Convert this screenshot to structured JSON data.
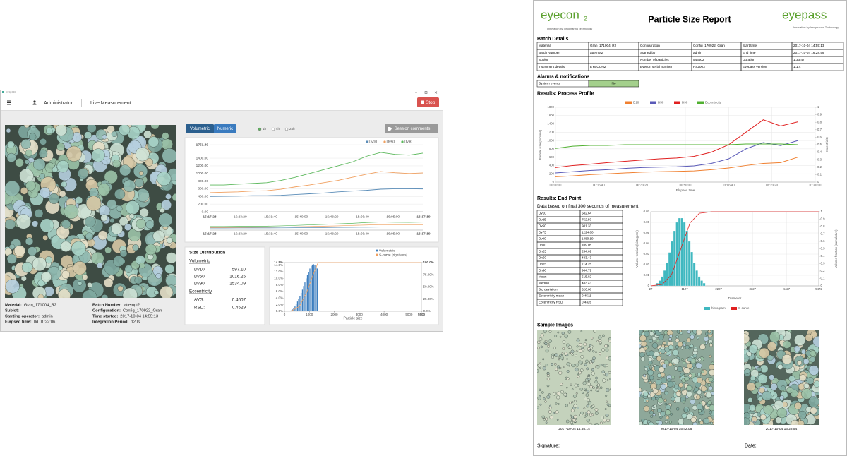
{
  "app": {
    "window_title": "eyepass",
    "user": "Administrator",
    "mode": "Live Measurement",
    "stop": "Stop",
    "tabs": [
      "Volumetric",
      "Numeric"
    ],
    "ranges": [
      "1h",
      "4h",
      "24h"
    ],
    "session_comments": "Session comments",
    "info": [
      {
        "label": "Material:",
        "value": "Gran_171004_R2"
      },
      {
        "label": "Batch Number:",
        "value": "attempt2"
      },
      {
        "label": "Sublot:"
      },
      {
        "label": "Configuration:",
        "value": "Config_170922_Gran"
      },
      {
        "label": "Starting operator:",
        "value": "admin"
      },
      {
        "label": "Time started:",
        "value": "2017-10-04 14:55:13"
      },
      {
        "label": "Elapsed time:",
        "value": "0d 01:22:06"
      },
      {
        "label": "Integration Period:",
        "value": "120s"
      }
    ],
    "trend": {
      "type": "line",
      "ylim": [
        0,
        1751.89
      ],
      "yticks": [
        {
          "value": 0,
          "label": "0.00"
        },
        {
          "value": 200,
          "label": "200.00"
        },
        {
          "value": 400,
          "label": "400.00"
        },
        {
          "value": 600,
          "label": "600.00"
        },
        {
          "value": 800,
          "label": "800.00"
        },
        {
          "value": 1000,
          "label": "1000.00"
        },
        {
          "value": 1200,
          "label": "1200.00"
        },
        {
          "value": 1400,
          "label": "1400.00"
        },
        1751.89
      ],
      "xticks": [
        "15:17:23",
        "15:23:20",
        "15:31:40",
        "15:40:00",
        "15:48:20",
        "15:56:40",
        "16:05:00",
        "16:17:19"
      ],
      "grid": true,
      "series": [
        {
          "name": "Dv10",
          "color": "#5b8db8",
          "values": [
            400,
            405,
            410,
            420,
            420,
            430,
            450,
            470,
            490,
            520,
            540,
            560,
            590,
            600,
            600,
            597
          ]
        },
        {
          "name": "Dv50",
          "color": "#f0a060",
          "values": [
            500,
            510,
            520,
            540,
            550,
            590,
            650,
            700,
            760,
            820,
            900,
            980,
            1050,
            1020,
            1000,
            1016
          ]
        },
        {
          "name": "Dv90",
          "color": "#5cb85c",
          "values": [
            700,
            700,
            720,
            740,
            760,
            820,
            900,
            1000,
            1100,
            1200,
            1300,
            1450,
            1550,
            1500,
            1480,
            1534
          ]
        }
      ]
    },
    "size_distribution": {
      "title": "Size Distribution",
      "volumetric": "Volumetric",
      "stats": [
        {
          "label": "Dv10:",
          "value": "597.10"
        },
        {
          "label": "Dv50:",
          "value": "1016.25"
        },
        {
          "label": "Dv90:",
          "value": "1534.09"
        }
      ],
      "eccentricity": "Eccentricity",
      "ecc_stats": [
        {
          "label": "AVG:",
          "value": "0.4607"
        },
        {
          "label": "RSD:",
          "value": "0.4529"
        }
      ]
    },
    "histogram": {
      "type": "histogram",
      "x_label": "Particle size",
      "xlim": [
        0,
        5500
      ],
      "xticks": [
        0,
        1000,
        2000,
        3000,
        4000,
        5000,
        5500
      ],
      "ylim": [
        0,
        14.8
      ],
      "yticks": [
        {
          "value": 0,
          "label": "0.0%"
        },
        {
          "value": 2,
          "label": "2.0%"
        },
        {
          "value": 4,
          "label": "4.0%"
        },
        {
          "value": 6,
          "label": "6.0%"
        },
        {
          "value": 8,
          "label": "8.0%"
        },
        {
          "value": 10,
          "label": "10.0%"
        },
        {
          "value": 12,
          "label": "12.0%"
        },
        {
          "value": 14,
          "label": "14.0%"
        },
        {
          "value": 14.8,
          "label": "14.8%"
        }
      ],
      "y2lim": [
        0,
        100
      ],
      "y2ticks": [
        {
          "value": 0,
          "label": "0.0%"
        },
        {
          "value": 25,
          "label": "25.00%"
        },
        {
          "value": 50,
          "label": "50.00%"
        },
        {
          "value": 75,
          "label": "75.00%"
        },
        {
          "value": 100,
          "label": "100.0%"
        }
      ],
      "bins": [
        250,
        300,
        350,
        400,
        450,
        500,
        550,
        600,
        650,
        700,
        750,
        800,
        850,
        900,
        950,
        1000,
        1050,
        1100,
        1150,
        1200,
        1250,
        1300,
        1350
      ],
      "series": [
        {
          "name": "Volumetric",
          "color": "#3c7ebf",
          "values": [
            0.3,
            0.6,
            1,
            1.5,
            2.2,
            3,
            3.8,
            4.7,
            5.6,
            6.6,
            7.7,
            8.8,
            10,
            11,
            12,
            13,
            13.8,
            14.2,
            14.3,
            14,
            13.5,
            13
          ]
        },
        {
          "name": "S-curve (right axis)",
          "color": "#f0a060",
          "axis": "y2",
          "x": [
            250,
            600,
            900,
            1150,
            1350,
            5500
          ],
          "values": [
            0,
            10,
            40,
            75,
            100,
            100
          ]
        }
      ]
    }
  },
  "report": {
    "logo_left": "eyecon",
    "logo_left_sub": "2",
    "logo_tagline": "Innovation by Innopharma Technology",
    "logo_right": "eyepass",
    "logo_right_tagline": "Innovation by Innopharma Technology",
    "title": "Particle Size Report",
    "batch_title": "Batch Details",
    "batch_rows": [
      [
        "Material",
        "Gran_171004_R2",
        "Configuration",
        "Config_170922_Gran",
        "Start time",
        "2017-10-04 14:55:13"
      ],
      [
        "Batch Number",
        "attempt2",
        "Started by",
        "admin",
        "End time",
        "2017-10-04 16:28:59"
      ],
      [
        "Sublot",
        null,
        "Number of particles",
        "543602",
        "Duration",
        "1:33:47"
      ],
      [
        "Instrument details",
        "EYECON2",
        "Eyecon serial number",
        "PS2003",
        "Eyepass version",
        "1.1.4"
      ]
    ],
    "alarms_title": "Alarms & notifications",
    "alarms_rows": [
      [
        "System events",
        "No"
      ]
    ],
    "profile_title": "Results: Process Profile",
    "profile": {
      "type": "line",
      "x_label": "Elapsed time",
      "y_label": "Particle size (microns)",
      "y2_label": "Eccentricity",
      "xlim": [
        0,
        6000
      ],
      "xticks": [
        {
          "value": 0,
          "label": "00:00:00"
        },
        {
          "value": 1000,
          "label": "00:16:40"
        },
        {
          "value": 2000,
          "label": "00:33:20"
        },
        {
          "value": 3000,
          "label": "00:50:00"
        },
        {
          "value": 4000,
          "label": "01:06:40"
        },
        {
          "value": 5000,
          "label": "01:23:20"
        },
        {
          "value": 6000,
          "label": "01:40:00"
        }
      ],
      "ylim": [
        0,
        1800
      ],
      "yticks": [
        0,
        200,
        400,
        600,
        800,
        1000,
        1200,
        1400,
        1600,
        1800
      ],
      "y2lim": [
        0,
        1
      ],
      "y2ticks": [
        0,
        0.1,
        0.2,
        0.3,
        0.4,
        0.5,
        0.6,
        0.7,
        0.8,
        0.9,
        1
      ],
      "grid": true,
      "x": [
        0,
        400,
        800,
        1200,
        1600,
        2000,
        2400,
        2800,
        3200,
        3600,
        4000,
        4400,
        4800,
        5200,
        5600
      ],
      "series": [
        {
          "name": "D10",
          "color": "#f08030",
          "values": [
            130,
            150,
            180,
            200,
            220,
            240,
            250,
            260,
            270,
            300,
            340,
            400,
            450,
            470,
            600
          ]
        },
        {
          "name": "D50",
          "color": "#5a5ab8",
          "values": [
            220,
            250,
            280,
            300,
            330,
            350,
            360,
            370,
            390,
            450,
            560,
            800,
            950,
            880,
            1000
          ]
        },
        {
          "name": "D90",
          "color": "#e02020",
          "values": [
            350,
            400,
            430,
            470,
            500,
            530,
            560,
            580,
            620,
            720,
            900,
            1200,
            1500,
            1350,
            1450
          ]
        },
        {
          "name": "Eccentricity",
          "color": "#50b030",
          "axis": "y2",
          "values": [
            0.45,
            0.48,
            0.49,
            0.49,
            0.5,
            0.5,
            0.5,
            0.5,
            0.5,
            0.5,
            0.5,
            0.51,
            0.51,
            0.51,
            0.5
          ]
        }
      ]
    },
    "endpoint_title": "Results: End Point",
    "endpoint_note": "Data based on final 300 seconds of measurement",
    "endpoint_rows": [
      [
        "Dv10",
        "582.64"
      ],
      [
        "Dv25",
        "752.50"
      ],
      [
        "Dv50",
        "981.33"
      ],
      [
        "Dv75",
        "1224.60"
      ],
      [
        "Dv90",
        "1480.19"
      ],
      [
        "Dn10",
        "109.05"
      ],
      [
        "Dn25",
        "254.69"
      ],
      [
        "Dn50",
        "483.43"
      ],
      [
        "Dn75",
        "714.25"
      ],
      [
        "Dn90",
        "964.79"
      ],
      [
        "Mean",
        "515.82"
      ],
      [
        "Median",
        "483.43"
      ],
      [
        "Std deviation",
        "326.08"
      ],
      [
        "Eccentricity mean",
        "0.4511"
      ],
      [
        "Eccentricity RSD",
        "0.4326"
      ]
    ],
    "endpoint_hist": {
      "type": "histogram",
      "x_label": "Diameter",
      "y_label": "Volume fraction (histogram)",
      "y2_label": "Volume fraction (cumulative)",
      "xlim": [
        27,
        5472
      ],
      "xticks": [
        27,
        1127,
        2227,
        3327,
        4427,
        5472
      ],
      "ylim": [
        0,
        0.07
      ],
      "yticks": [
        0,
        0.01,
        0.02,
        0.03,
        0.04,
        0.05,
        0.06,
        0.07
      ],
      "y2lim": [
        0,
        1
      ],
      "y2ticks": [
        0,
        0.1,
        0.2,
        0.3,
        0.4,
        0.5,
        0.6,
        0.7,
        0.8,
        0.9,
        1
      ],
      "grid": true,
      "bins": [
        200,
        280,
        360,
        440,
        520,
        600,
        680,
        760,
        840,
        920,
        1000,
        1080,
        1160,
        1240,
        1320,
        1400,
        1480,
        1560,
        1640,
        1720,
        1800
      ],
      "series": [
        {
          "name": "histogram",
          "color": "#40b8c0",
          "values": [
            0.0026,
            0.005,
            0.0088,
            0.0145,
            0.022,
            0.0316,
            0.042,
            0.052,
            0.06,
            0.064,
            0.064,
            0.06,
            0.052,
            0.042,
            0.032,
            0.022,
            0.0145,
            0.0088,
            0.005,
            0.0026
          ]
        },
        {
          "name": "S-curve",
          "color": "#e02020",
          "axis": "y2",
          "x": [
            27,
            400,
            700,
            1000,
            1300,
            1600,
            2000,
            5472
          ],
          "values": [
            0,
            0.02,
            0.15,
            0.5,
            0.85,
            0.98,
            1,
            1
          ]
        }
      ]
    },
    "samples_title": "Sample Images",
    "sample_dates": [
      "2017-10-04 14:55:14",
      "2017-10-04 15:42:06",
      "2017-10-04 16:28:54"
    ],
    "signature": "Signature: ___________________________",
    "date": "Date: _______________"
  }
}
